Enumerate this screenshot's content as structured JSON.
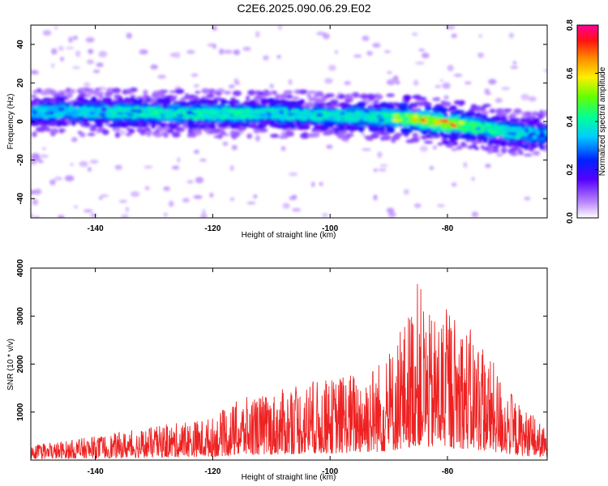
{
  "title": "C2E6.2025.090.06.29.E02",
  "chart_data": [
    {
      "type": "heatmap",
      "xlabel": "Height of straight line (km)",
      "ylabel": "Frequency (Hz)",
      "xlim": [
        -151,
        -63
      ],
      "ylim": [
        -50,
        50
      ],
      "xticks": [
        -140,
        -120,
        -100,
        -80
      ],
      "yticks": [
        -40,
        -20,
        0,
        20,
        40
      ],
      "colorbar": {
        "label": "Normalized spectral amplitude",
        "range": [
          0,
          0.8
        ],
        "ticks": [
          0.0,
          0.2,
          0.4,
          0.6,
          0.8
        ]
      },
      "ridge": {
        "x": [
          -151,
          -140,
          -130,
          -120,
          -110,
          -100,
          -90,
          -85,
          -80,
          -75,
          -70,
          -63
        ],
        "freq": [
          5,
          5,
          4.5,
          4,
          4,
          3,
          2,
          1.5,
          -1,
          -3,
          -5,
          -7
        ],
        "peak_amplitude": [
          0.3,
          0.35,
          0.45,
          0.45,
          0.4,
          0.4,
          0.5,
          0.8,
          0.75,
          0.55,
          0.4,
          0.35
        ]
      }
    },
    {
      "type": "line",
      "xlabel": "Height of straight line (km)",
      "ylabel": "SNR (10 * v/v)",
      "xlim": [
        -151,
        -63
      ],
      "ylim": [
        0,
        4000
      ],
      "xticks": [
        -140,
        -120,
        -100,
        -80
      ],
      "yticks": [
        1000,
        2000,
        3000,
        4000
      ],
      "color": "#ee2222",
      "envelope": {
        "x": [
          -151,
          -140,
          -130,
          -120,
          -115,
          -110,
          -105,
          -100,
          -95,
          -90,
          -87,
          -85,
          -83,
          -80,
          -78,
          -75,
          -72,
          -68,
          -65,
          -63
        ],
        "y": [
          300,
          500,
          700,
          900,
          1300,
          1400,
          1600,
          1700,
          1900,
          2200,
          3000,
          3800,
          3000,
          3200,
          3000,
          2600,
          2000,
          1200,
          900,
          600
        ]
      }
    }
  ]
}
